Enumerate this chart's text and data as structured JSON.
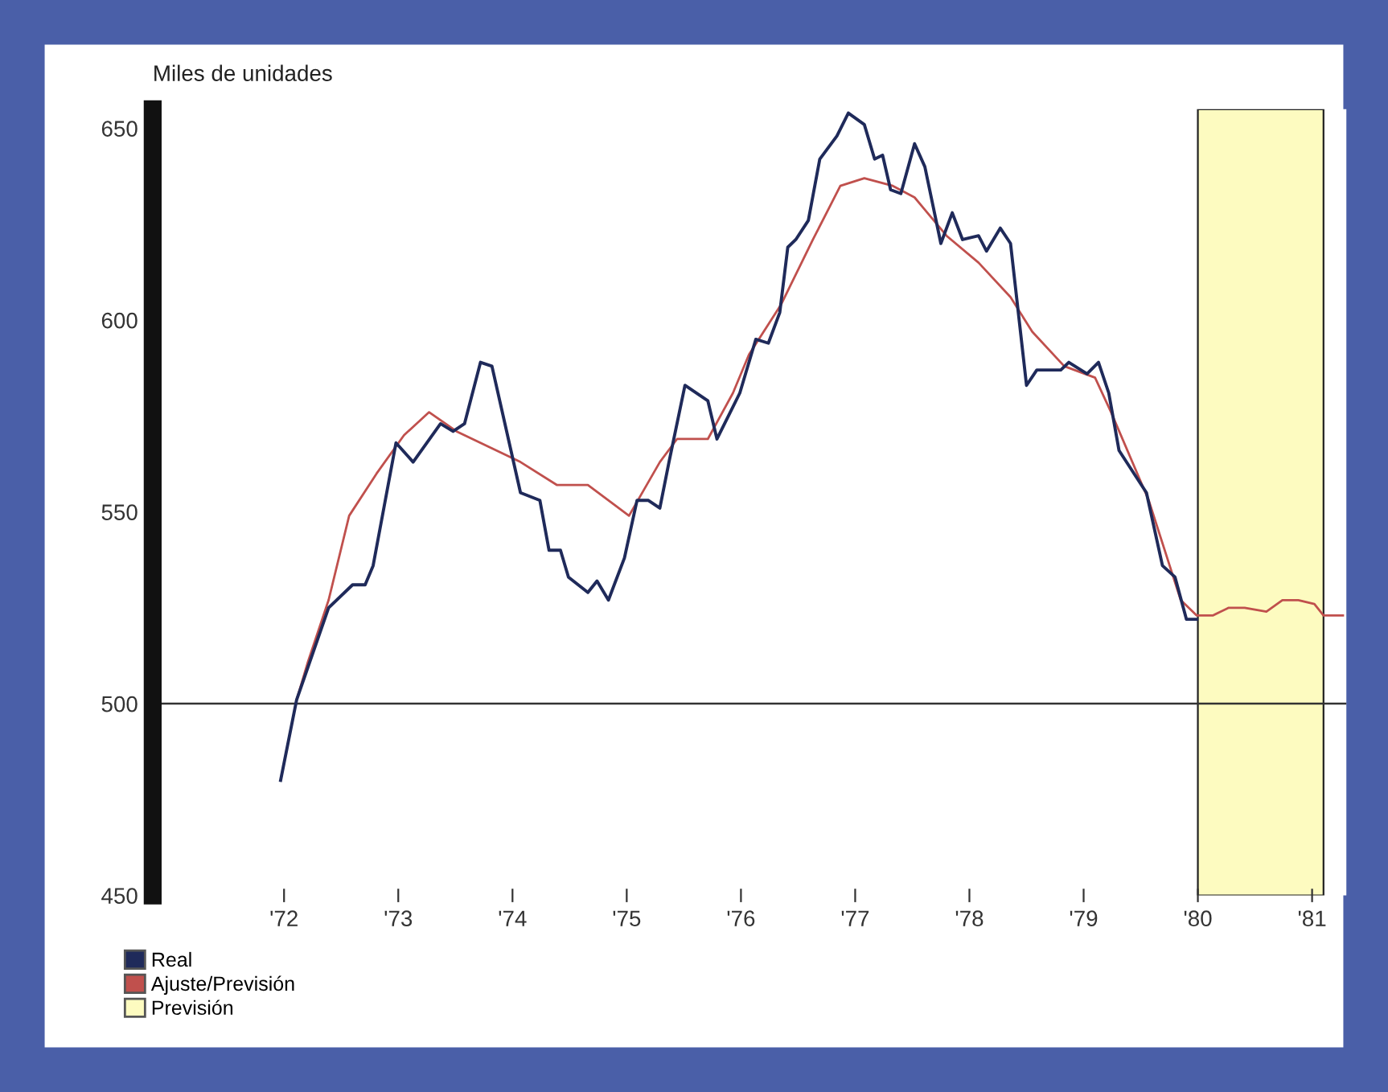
{
  "chart_data": {
    "type": "line",
    "ylabel": "Miles de unidades",
    "xlim": [
      1970.85,
      1981.3
    ],
    "xticks": [
      {
        "value": 1972,
        "label": "'72"
      },
      {
        "value": 1973,
        "label": "'73"
      },
      {
        "value": 1974,
        "label": "'74"
      },
      {
        "value": 1975,
        "label": "'75"
      },
      {
        "value": 1976,
        "label": "'76"
      },
      {
        "value": 1977,
        "label": "'77"
      },
      {
        "value": 1978,
        "label": "'78"
      },
      {
        "value": 1979,
        "label": "'79"
      },
      {
        "value": 1980,
        "label": "'80"
      },
      {
        "value": 1981,
        "label": "'81"
      }
    ],
    "ylim": [
      450,
      655
    ],
    "yticks": [
      450,
      500,
      550,
      600,
      650
    ],
    "grid": false,
    "legend": "bottom left",
    "series": [
      {
        "name": "Real",
        "color": "#1f2a5a",
        "x": [
          1971.97,
          1972.11,
          1972.39,
          1972.6,
          1972.71,
          1972.78,
          1972.98,
          1973.13,
          1973.37,
          1973.48,
          1973.58,
          1973.72,
          1973.82,
          1974.07,
          1974.24,
          1974.32,
          1974.42,
          1974.49,
          1974.66,
          1974.74,
          1974.84,
          1974.98,
          1975.09,
          1975.19,
          1975.29,
          1975.37,
          1975.51,
          1975.71,
          1975.79,
          1975.99,
          1976.13,
          1976.24,
          1976.34,
          1976.41,
          1976.48,
          1976.59,
          1976.69,
          1976.84,
          1976.94,
          1977.08,
          1977.17,
          1977.24,
          1977.31,
          1977.4,
          1977.52,
          1977.61,
          1977.75,
          1977.85,
          1977.94,
          1978.08,
          1978.15,
          1978.27,
          1978.36,
          1978.5,
          1978.59,
          1978.8,
          1978.87,
          1979.03,
          1979.13,
          1979.22,
          1979.31,
          1979.55,
          1979.69,
          1979.8,
          1979.9,
          1979.99
        ],
        "values": [
          480,
          501,
          525,
          531,
          531,
          536,
          568,
          563,
          573,
          571,
          573,
          589,
          588,
          555,
          553,
          540,
          540,
          533,
          529,
          532,
          527,
          538,
          553,
          553,
          551,
          563,
          583,
          579,
          569,
          581,
          595,
          594,
          602,
          619,
          621,
          626,
          642,
          648,
          654,
          651,
          642,
          643,
          634,
          633,
          646,
          640,
          620,
          628,
          621,
          622,
          618,
          624,
          620,
          583,
          587,
          587,
          589,
          586,
          589,
          581,
          566,
          555,
          536,
          533,
          522,
          522
        ]
      },
      {
        "name": "Ajuste/Previsión",
        "color": "#c0504d",
        "x": [
          1972.11,
          1972.21,
          1972.39,
          1972.57,
          1972.81,
          1973.05,
          1973.27,
          1973.51,
          1973.79,
          1974.07,
          1974.39,
          1974.66,
          1975.02,
          1975.29,
          1975.44,
          1975.71,
          1975.93,
          1976.07,
          1976.35,
          1976.63,
          1976.87,
          1977.08,
          1977.33,
          1977.52,
          1977.8,
          1978.08,
          1978.36,
          1978.55,
          1978.83,
          1979.1,
          1979.24,
          1979.57,
          1979.85,
          1979.99,
          1980.13,
          1980.27,
          1980.41,
          1980.6,
          1980.74,
          1980.88,
          1981.02,
          1981.1,
          1981.27
        ],
        "values": [
          501,
          511,
          527,
          549,
          560,
          570,
          576,
          571,
          567,
          563,
          557,
          557,
          549,
          563,
          569,
          569,
          581,
          591,
          604,
          621,
          635,
          637,
          635,
          632,
          622,
          615,
          606,
          597,
          588,
          585,
          576,
          553,
          527,
          523,
          523,
          525,
          525,
          524,
          527,
          527,
          526,
          523,
          523
        ]
      }
    ],
    "ref_lines": [
      {
        "axis": "y",
        "value": 500,
        "color": "#333333"
      }
    ],
    "bands": [
      {
        "axis": "x",
        "from": 1980,
        "to": 1981.1,
        "label": "Previsión",
        "color": "#fdfbc0"
      }
    ]
  }
}
